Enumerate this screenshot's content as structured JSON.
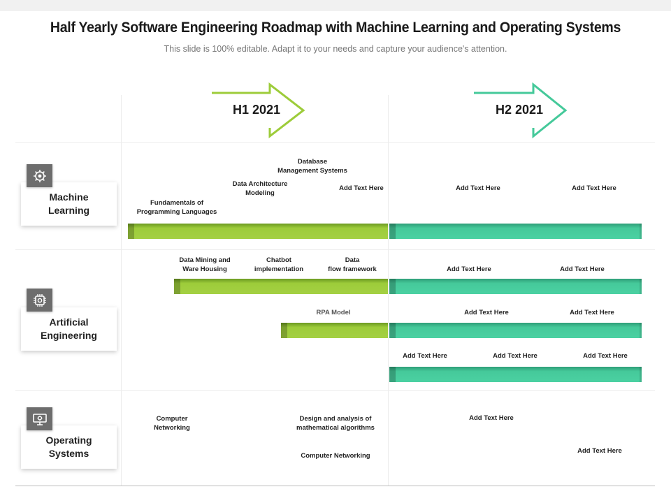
{
  "title": "Half Yearly Software Engineering Roadmap with Machine Learning and Operating Systems",
  "subtitle": "This slide is 100% editable. Adapt it to your needs and capture your audience's attention.",
  "periods": [
    "H1 2021",
    "H2 2021"
  ],
  "colors": {
    "h1": "#9dcc3a",
    "h2": "#45c99a",
    "icon_bg": "#6d6d6d"
  },
  "categories": [
    {
      "name": "Machine\nLearning",
      "icon": "brain-gear-icon"
    },
    {
      "name": "Artificial\nEngineering",
      "icon": "chip-icon"
    },
    {
      "name": "Operating\nSystems",
      "icon": "computer-settings-icon"
    }
  ],
  "labels": {
    "ml": [
      "Database\nManagement Systems",
      "Data Architecture\nModeling",
      "Fundamentals of\nProgramming Languages",
      "Add Text Here",
      "Add Text Here",
      "Add Text Here"
    ],
    "ae1": [
      "Data Mining and\nWare Housing",
      "Chatbot\nimplementation",
      "Data\nflow framework",
      "Add  Text Here",
      "Add  Text Here"
    ],
    "ae2": [
      "RPA Model",
      "Add  Text Here",
      "Add  Text Here"
    ],
    "ae3": [
      "Add Text Here",
      "Add Text Here",
      "Add Text Here"
    ],
    "os": [
      "Computer\nNetworking",
      "Design and analysis of\nmathematical  algorithms",
      "Computer Networking",
      "Add Text Here",
      "Add Text Here"
    ]
  }
}
